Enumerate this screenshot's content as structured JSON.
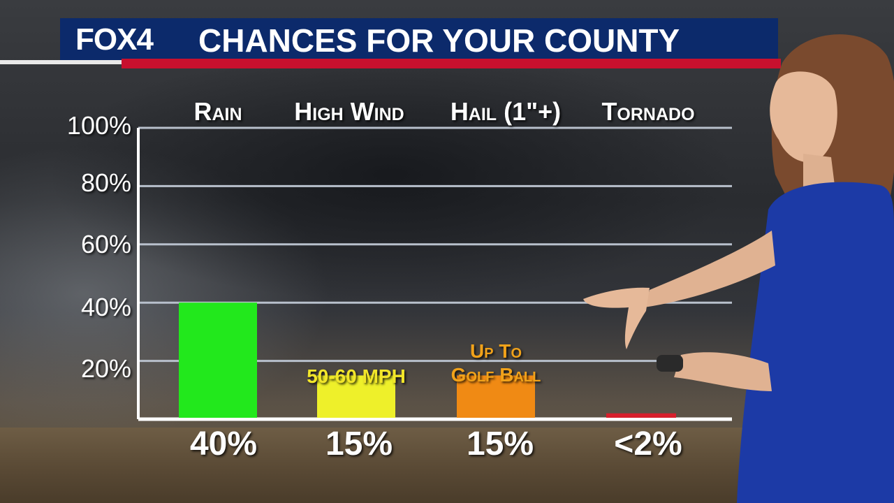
{
  "header": {
    "logo": "FOX4",
    "title": "CHANCES FOR YOUR COUNTY"
  },
  "colors": {
    "header_blue": "#0c2a6b",
    "header_red": "#c8102e",
    "grid": "#b8c0cc"
  },
  "chart_data": {
    "type": "bar",
    "categories": [
      "Rain",
      "High Wind",
      "Hail (1\"+)",
      "Tornado"
    ],
    "values": [
      40,
      15,
      15,
      2
    ],
    "value_labels": [
      "40%",
      "15%",
      "15%",
      "<2%"
    ],
    "bar_colors": [
      "#22e81c",
      "#eef02a",
      "#f08a14",
      "#d81f2c"
    ],
    "annotations": [
      {
        "category": "High Wind",
        "text": "50-60 MPH"
      },
      {
        "category": "Hail (1\"+)",
        "text": "Up To",
        "text2": "Golf Ball"
      }
    ],
    "yticks": [
      "20%",
      "40%",
      "60%",
      "80%",
      "100%"
    ],
    "ylim": [
      0,
      100
    ],
    "grid": true
  }
}
